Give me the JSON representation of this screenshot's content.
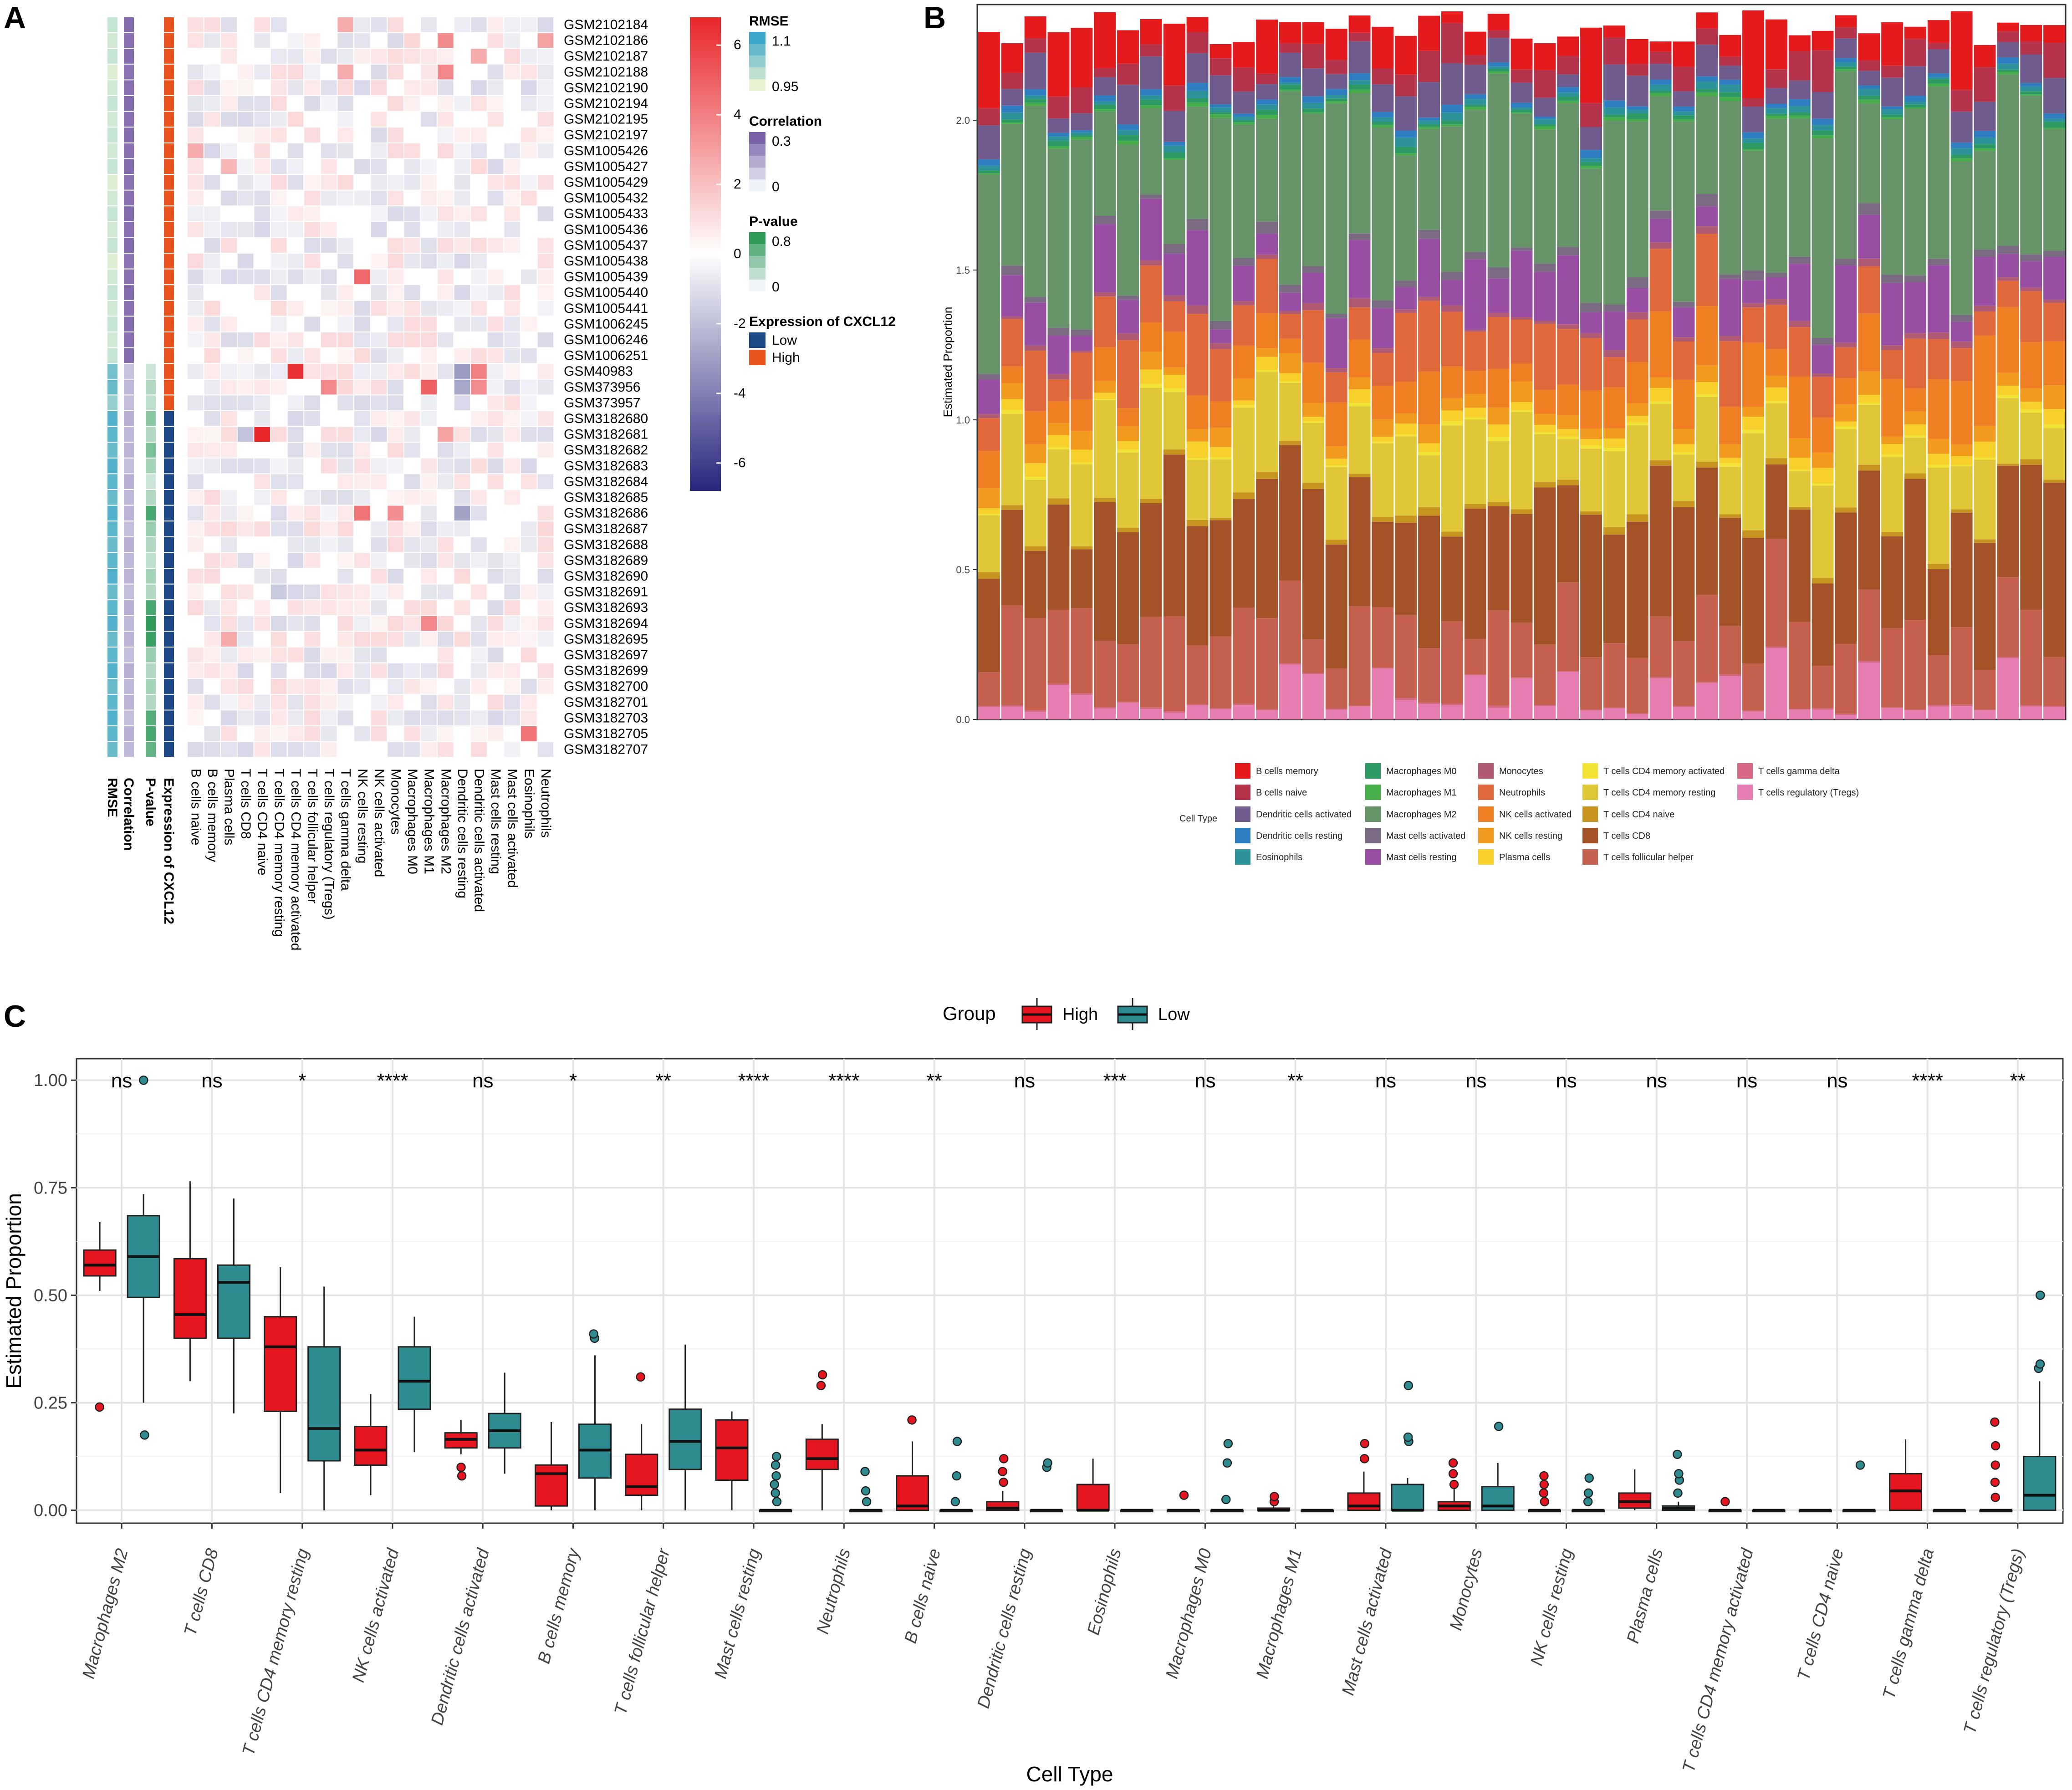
{
  "panels": {
    "a": "A",
    "b": "B",
    "c": "C"
  },
  "colors": {
    "high": "#e4151f",
    "low": "#2e8b8f",
    "expr_low": "#1d4886",
    "expr_high": "#e8541c",
    "hm_pos": "#e8262a",
    "hm_neg": "#26267e",
    "rmse_high": "#3aa6c9",
    "rmse_low": "#e9f3d4",
    "corr_high": "#7b61a8",
    "corr_low": "#eef2fa",
    "pval_high": "#2e9a5a",
    "pval_low": "#e6f1f3"
  },
  "panel_a": {
    "sample_ids": [
      "GSM2102184",
      "GSM2102186",
      "GSM2102187",
      "GSM2102188",
      "GSM2102190",
      "GSM2102194",
      "GSM2102195",
      "GSM2102197",
      "GSM1005426",
      "GSM1005427",
      "GSM1005429",
      "GSM1005432",
      "GSM1005433",
      "GSM1005436",
      "GSM1005437",
      "GSM1005438",
      "GSM1005439",
      "GSM1005440",
      "GSM1005441",
      "GSM1006245",
      "GSM1006246",
      "GSM1006251",
      "GSM40983",
      "GSM373956",
      "GSM373957",
      "GSM3182680",
      "GSM3182681",
      "GSM3182682",
      "GSM3182683",
      "GSM3182684",
      "GSM3182685",
      "GSM3182686",
      "GSM3182687",
      "GSM3182688",
      "GSM3182689",
      "GSM3182690",
      "GSM3182691",
      "GSM3182693",
      "GSM3182694",
      "GSM3182695",
      "GSM3182697",
      "GSM3182699",
      "GSM3182700",
      "GSM3182701",
      "GSM3182703",
      "GSM3182705",
      "GSM3182707"
    ],
    "annotation_columns": [
      "RMSE",
      "Correlation",
      "P-value",
      "Expression of CXCL12"
    ],
    "cell_columns": [
      "B cells naive",
      "B cells memory",
      "Plasma cells",
      "T cells CD8",
      "T cells CD4 naive",
      "T cells CD4 memory resting",
      "T cells CD4 memory activated",
      "T cells follicular helper",
      "T cells regulatory (Tregs)",
      "T cells gamma delta",
      "NK cells resting",
      "NK cells activated",
      "Monocytes",
      "Macrophages M0",
      "Macrophages M1",
      "Macrophages M2",
      "Dendritic cells resting",
      "Dendritic cells activated",
      "Mast cells resting",
      "Mast cells activated",
      "Eosinophils",
      "Neutrophils"
    ],
    "annotation_values": {
      "rmse": [
        0.98,
        0.97,
        0.98,
        0.96,
        0.97,
        0.98,
        0.97,
        0.98,
        0.97,
        0.98,
        0.96,
        0.97,
        0.98,
        0.97,
        0.98,
        0.96,
        0.97,
        0.98,
        0.97,
        0.98,
        0.97,
        0.98,
        1.05,
        1.06,
        1.02,
        1.08,
        1.07,
        1.06,
        1.08,
        1.07,
        1.06,
        1.08,
        1.07,
        1.06,
        1.07,
        1.08,
        1.06,
        1.07,
        1.08,
        1.06,
        1.07,
        1.08,
        1.06,
        1.07,
        1.08,
        1.07,
        1.06
      ],
      "correlation": [
        0.28,
        0.27,
        0.28,
        0.26,
        0.27,
        0.28,
        0.27,
        0.28,
        0.27,
        0.28,
        0.26,
        0.27,
        0.28,
        0.27,
        0.28,
        0.26,
        0.27,
        0.28,
        0.27,
        0.28,
        0.27,
        0.28,
        0.1,
        0.12,
        0.11,
        0.14,
        0.12,
        0.13,
        0.11,
        0.14,
        0.12,
        0.13,
        0.11,
        0.14,
        0.12,
        0.13,
        0.11,
        0.14,
        0.12,
        0.13,
        0.11,
        0.14,
        0.12,
        0.13,
        0.11,
        0.14,
        0.12
      ],
      "pvalue": [
        0,
        0,
        0,
        0,
        0,
        0,
        0,
        0,
        0,
        0,
        0,
        0,
        0,
        0,
        0,
        0,
        0,
        0,
        0,
        0,
        0,
        0,
        0.2,
        0.3,
        0.25,
        0.45,
        0.3,
        0.5,
        0.35,
        0.2,
        0.3,
        0.7,
        0.4,
        0.3,
        0.25,
        0.35,
        0.3,
        0.7,
        0.8,
        0.75,
        0.4,
        0.3,
        0.35,
        0.3,
        0.65,
        0.7,
        0.6
      ],
      "expression": [
        1,
        1,
        1,
        1,
        1,
        1,
        1,
        1,
        1,
        1,
        1,
        1,
        1,
        1,
        1,
        1,
        1,
        1,
        1,
        1,
        1,
        1,
        1,
        1,
        1,
        0,
        0,
        0,
        0,
        0,
        0,
        0,
        0,
        0,
        0,
        0,
        0,
        0,
        0,
        0,
        0,
        0,
        0,
        0,
        0,
        0,
        0
      ]
    },
    "highlight_cells": [
      {
        "r": 0,
        "c": 9,
        "v": 2.5
      },
      {
        "r": 1,
        "c": 15,
        "v": 3.5
      },
      {
        "r": 1,
        "c": 21,
        "v": 2.8
      },
      {
        "r": 2,
        "c": 17,
        "v": 2.5
      },
      {
        "r": 3,
        "c": 9,
        "v": 2.5
      },
      {
        "r": 3,
        "c": 15,
        "v": 3.6
      },
      {
        "r": 8,
        "c": 0,
        "v": 2.5
      },
      {
        "r": 9,
        "c": 2,
        "v": 2.2
      },
      {
        "r": 16,
        "c": 10,
        "v": 4.5
      },
      {
        "r": 22,
        "c": 6,
        "v": 6.2
      },
      {
        "r": 22,
        "c": 17,
        "v": 3.8
      },
      {
        "r": 23,
        "c": 8,
        "v": 3.5
      },
      {
        "r": 23,
        "c": 14,
        "v": 4.8
      },
      {
        "r": 23,
        "c": 17,
        "v": 3.4
      },
      {
        "r": 26,
        "c": 4,
        "v": 6.5
      },
      {
        "r": 26,
        "c": 15,
        "v": 2.8
      },
      {
        "r": 31,
        "c": 10,
        "v": 4.2
      },
      {
        "r": 31,
        "c": 12,
        "v": 3.4
      },
      {
        "r": 38,
        "c": 14,
        "v": 3.6
      },
      {
        "r": 39,
        "c": 2,
        "v": 2.6
      },
      {
        "r": 45,
        "c": 20,
        "v": 4.2
      },
      {
        "r": 22,
        "c": 16,
        "v": -3.0
      },
      {
        "r": 23,
        "c": 16,
        "v": -2.6
      },
      {
        "r": 31,
        "c": 16,
        "v": -2.8
      },
      {
        "r": 26,
        "c": 3,
        "v": -1.8
      },
      {
        "r": 36,
        "c": 5,
        "v": -1.6
      },
      {
        "r": 1,
        "c": 21,
        "v": 2.8
      }
    ],
    "colorbar_ticks": [
      "6",
      "4",
      "2",
      "0",
      "-2",
      "-4",
      "-6"
    ],
    "legend": {
      "rmse_title": "RMSE",
      "rmse_hi": "1.1",
      "rmse_lo": "0.95",
      "corr_title": "Correlation",
      "corr_hi": "0.3",
      "corr_lo": "0",
      "pval_title": "P-value",
      "pval_hi": "0.8",
      "pval_lo": "0",
      "expr_title": "Expression of CXCL12",
      "expr_low": "Low",
      "expr_high": "High"
    }
  },
  "panel_b": {
    "y_label": "Estimated Proportion",
    "y_ticks": [
      "0.0",
      "0.5",
      "1.0",
      "1.5",
      "2.0"
    ],
    "n_samples": 47,
    "legend_title": "Cell Type",
    "cell_types": [
      {
        "name": "B cells memory",
        "color": "#e41a1c"
      },
      {
        "name": "B cells naive",
        "color": "#b5344b"
      },
      {
        "name": "Dendritic cells activated",
        "color": "#6f5b8e"
      },
      {
        "name": "Dendritic cells resting",
        "color": "#2f7ec1"
      },
      {
        "name": "Eosinophils",
        "color": "#2b9399"
      },
      {
        "name": "Macrophages M0",
        "color": "#2e9a63"
      },
      {
        "name": "Macrophages M1",
        "color": "#45ad4a"
      },
      {
        "name": "Macrophages M2",
        "color": "#669468"
      },
      {
        "name": "Mast cells activated",
        "color": "#7b6b82"
      },
      {
        "name": "Mast cells resting",
        "color": "#984ea3"
      },
      {
        "name": "Monocytes",
        "color": "#b05a73"
      },
      {
        "name": "Neutrophils",
        "color": "#e1683a"
      },
      {
        "name": "NK cells activated",
        "color": "#f07f23"
      },
      {
        "name": "NK cells resting",
        "color": "#f29a1d"
      },
      {
        "name": "Plasma cells",
        "color": "#f7d02c"
      },
      {
        "name": "T cells CD4 memory activated",
        "color": "#f2e335"
      },
      {
        "name": "T cells CD4 memory resting",
        "color": "#e0c738"
      },
      {
        "name": "T cells CD4 naive",
        "color": "#c7941f"
      },
      {
        "name": "T cells CD8",
        "color": "#a45228"
      },
      {
        "name": "T cells follicular helper",
        "color": "#c5604f"
      },
      {
        "name": "T cells gamma delta",
        "color": "#d66782"
      },
      {
        "name": "T cells regulatory (Tregs)",
        "color": "#e57db0"
      }
    ]
  },
  "chart_data": {
    "type": "box",
    "title": "",
    "xlabel": "Cell Type",
    "ylabel": "Estimated Proportion",
    "ylim": [
      -0.03,
      1.05
    ],
    "y_ticks": [
      "0.00",
      "0.25",
      "0.50",
      "0.75",
      "1.00"
    ],
    "legend_title": "Group",
    "groups": [
      "High",
      "Low"
    ],
    "categories": [
      "Macrophages M2",
      "T cells CD8",
      "T cells CD4 memory resting",
      "NK cells activated",
      "Dendritic cells activated",
      "B cells memory",
      "T cells follicular helper",
      "Mast cells resting",
      "Neutrophils",
      "B cells naive",
      "Dendritic cells resting",
      "Eosinophils",
      "Macrophages M0",
      "Macrophages M1",
      "Mast cells activated",
      "Monocytes",
      "NK cells resting",
      "Plasma cells",
      "T cells CD4 memory activated",
      "T cells CD4 naive",
      "T cells gamma delta",
      "T cells regulatory (Tregs)"
    ],
    "significance": [
      "ns",
      "ns",
      "*",
      "****",
      "ns",
      "*",
      "**",
      "****",
      "****",
      "**",
      "ns",
      "***",
      "ns",
      "**",
      "ns",
      "ns",
      "ns",
      "ns",
      "ns",
      "ns",
      "****",
      "**"
    ],
    "series": [
      {
        "name": "High",
        "boxes": [
          {
            "min": 0.51,
            "q1": 0.545,
            "median": 0.57,
            "q3": 0.605,
            "max": 0.67,
            "outliers": [
              0.24
            ]
          },
          {
            "min": 0.3,
            "q1": 0.4,
            "median": 0.455,
            "q3": 0.585,
            "max": 0.765,
            "outliers": []
          },
          {
            "min": 0.04,
            "q1": 0.23,
            "median": 0.38,
            "q3": 0.45,
            "max": 0.565,
            "outliers": []
          },
          {
            "min": 0.035,
            "q1": 0.105,
            "median": 0.14,
            "q3": 0.195,
            "max": 0.27,
            "outliers": []
          },
          {
            "min": 0.13,
            "q1": 0.145,
            "median": 0.165,
            "q3": 0.18,
            "max": 0.21,
            "outliers": [
              0.08,
              0.1
            ]
          },
          {
            "min": 0.0,
            "q1": 0.01,
            "median": 0.085,
            "q3": 0.105,
            "max": 0.205,
            "outliers": []
          },
          {
            "min": 0.0,
            "q1": 0.035,
            "median": 0.055,
            "q3": 0.13,
            "max": 0.2,
            "outliers": [
              0.31
            ]
          },
          {
            "min": 0.0,
            "q1": 0.07,
            "median": 0.145,
            "q3": 0.21,
            "max": 0.23,
            "outliers": []
          },
          {
            "min": 0.0,
            "q1": 0.095,
            "median": 0.12,
            "q3": 0.165,
            "max": 0.2,
            "outliers": [
              0.29,
              0.315
            ]
          },
          {
            "min": 0.0,
            "q1": 0.0,
            "median": 0.01,
            "q3": 0.08,
            "max": 0.16,
            "outliers": [
              0.21
            ]
          },
          {
            "min": 0.0,
            "q1": 0.0,
            "median": 0.005,
            "q3": 0.02,
            "max": 0.045,
            "outliers": [
              0.065,
              0.09,
              0.12
            ]
          },
          {
            "min": 0.0,
            "q1": 0.0,
            "median": 0.0,
            "q3": 0.06,
            "max": 0.12,
            "outliers": []
          },
          {
            "min": 0.0,
            "q1": 0.0,
            "median": 0.0,
            "q3": 0.0,
            "max": 0.0,
            "outliers": [
              0.035
            ]
          },
          {
            "min": 0.0,
            "q1": 0.0,
            "median": 0.0,
            "q3": 0.005,
            "max": 0.01,
            "outliers": [
              0.02,
              0.032
            ]
          },
          {
            "min": 0.0,
            "q1": 0.0,
            "median": 0.01,
            "q3": 0.04,
            "max": 0.09,
            "outliers": [
              0.12,
              0.155
            ]
          },
          {
            "min": 0.0,
            "q1": 0.0,
            "median": 0.01,
            "q3": 0.02,
            "max": 0.05,
            "outliers": [
              0.06,
              0.085,
              0.11
            ]
          },
          {
            "min": 0.0,
            "q1": 0.0,
            "median": 0.0,
            "q3": 0.0,
            "max": 0.0,
            "outliers": [
              0.02,
              0.04,
              0.06,
              0.08
            ]
          },
          {
            "min": 0.0,
            "q1": 0.005,
            "median": 0.02,
            "q3": 0.04,
            "max": 0.095,
            "outliers": []
          },
          {
            "min": 0.0,
            "q1": 0.0,
            "median": 0.0,
            "q3": 0.0,
            "max": 0.0,
            "outliers": [
              0.02
            ]
          },
          {
            "min": 0.0,
            "q1": 0.0,
            "median": 0.0,
            "q3": 0.0,
            "max": 0.0,
            "outliers": []
          },
          {
            "min": 0.0,
            "q1": 0.0,
            "median": 0.045,
            "q3": 0.085,
            "max": 0.165,
            "outliers": []
          },
          {
            "min": 0.0,
            "q1": 0.0,
            "median": 0.0,
            "q3": 0.0,
            "max": 0.0,
            "outliers": [
              0.03,
              0.065,
              0.105,
              0.15,
              0.205
            ]
          }
        ]
      },
      {
        "name": "Low",
        "boxes": [
          {
            "min": 0.25,
            "q1": 0.495,
            "median": 0.59,
            "q3": 0.685,
            "max": 0.735,
            "outliers": [
              0.175,
              1.0
            ]
          },
          {
            "min": 0.225,
            "q1": 0.4,
            "median": 0.53,
            "q3": 0.57,
            "max": 0.725,
            "outliers": []
          },
          {
            "min": 0.0,
            "q1": 0.115,
            "median": 0.19,
            "q3": 0.38,
            "max": 0.52,
            "outliers": []
          },
          {
            "min": 0.135,
            "q1": 0.235,
            "median": 0.3,
            "q3": 0.38,
            "max": 0.45,
            "outliers": []
          },
          {
            "min": 0.085,
            "q1": 0.145,
            "median": 0.185,
            "q3": 0.225,
            "max": 0.32,
            "outliers": []
          },
          {
            "min": 0.0,
            "q1": 0.075,
            "median": 0.14,
            "q3": 0.2,
            "max": 0.36,
            "outliers": [
              0.4,
              0.41
            ]
          },
          {
            "min": 0.0,
            "q1": 0.095,
            "median": 0.16,
            "q3": 0.235,
            "max": 0.385,
            "outliers": []
          },
          {
            "min": 0.0,
            "q1": 0.0,
            "median": 0.0,
            "q3": 0.0,
            "max": 0.0,
            "outliers": [
              0.02,
              0.04,
              0.06,
              0.08,
              0.105,
              0.125
            ]
          },
          {
            "min": 0.0,
            "q1": 0.0,
            "median": 0.0,
            "q3": 0.0,
            "max": 0.0,
            "outliers": [
              0.02,
              0.045,
              0.09
            ]
          },
          {
            "min": 0.0,
            "q1": 0.0,
            "median": 0.0,
            "q3": 0.0,
            "max": 0.0,
            "outliers": [
              0.02,
              0.08,
              0.16
            ]
          },
          {
            "min": 0.0,
            "q1": 0.0,
            "median": 0.0,
            "q3": 0.0,
            "max": 0.0,
            "outliers": [
              0.1,
              0.11
            ]
          },
          {
            "min": 0.0,
            "q1": 0.0,
            "median": 0.0,
            "q3": 0.0,
            "max": 0.0,
            "outliers": []
          },
          {
            "min": 0.0,
            "q1": 0.0,
            "median": 0.0,
            "q3": 0.0,
            "max": 0.0,
            "outliers": [
              0.025,
              0.11,
              0.155
            ]
          },
          {
            "min": 0.0,
            "q1": 0.0,
            "median": 0.0,
            "q3": 0.0,
            "max": 0.0,
            "outliers": []
          },
          {
            "min": 0.0,
            "q1": 0.0,
            "median": 0.0,
            "q3": 0.06,
            "max": 0.075,
            "outliers": [
              0.16,
              0.17,
              0.29
            ]
          },
          {
            "min": 0.0,
            "q1": 0.0,
            "median": 0.01,
            "q3": 0.055,
            "max": 0.11,
            "outliers": [
              0.195
            ]
          },
          {
            "min": 0.0,
            "q1": 0.0,
            "median": 0.0,
            "q3": 0.0,
            "max": 0.0,
            "outliers": [
              0.02,
              0.04,
              0.075
            ]
          },
          {
            "min": 0.0,
            "q1": 0.0,
            "median": 0.005,
            "q3": 0.01,
            "max": 0.02,
            "outliers": [
              0.04,
              0.07,
              0.085,
              0.13
            ]
          },
          {
            "min": 0.0,
            "q1": 0.0,
            "median": 0.0,
            "q3": 0.0,
            "max": 0.0,
            "outliers": []
          },
          {
            "min": 0.0,
            "q1": 0.0,
            "median": 0.0,
            "q3": 0.0,
            "max": 0.0,
            "outliers": [
              0.105
            ]
          },
          {
            "min": 0.0,
            "q1": 0.0,
            "median": 0.0,
            "q3": 0.0,
            "max": 0.0,
            "outliers": []
          },
          {
            "min": 0.0,
            "q1": 0.0,
            "median": 0.035,
            "q3": 0.125,
            "max": 0.3,
            "outliers": [
              0.33,
              0.34,
              0.5
            ]
          }
        ]
      }
    ]
  }
}
